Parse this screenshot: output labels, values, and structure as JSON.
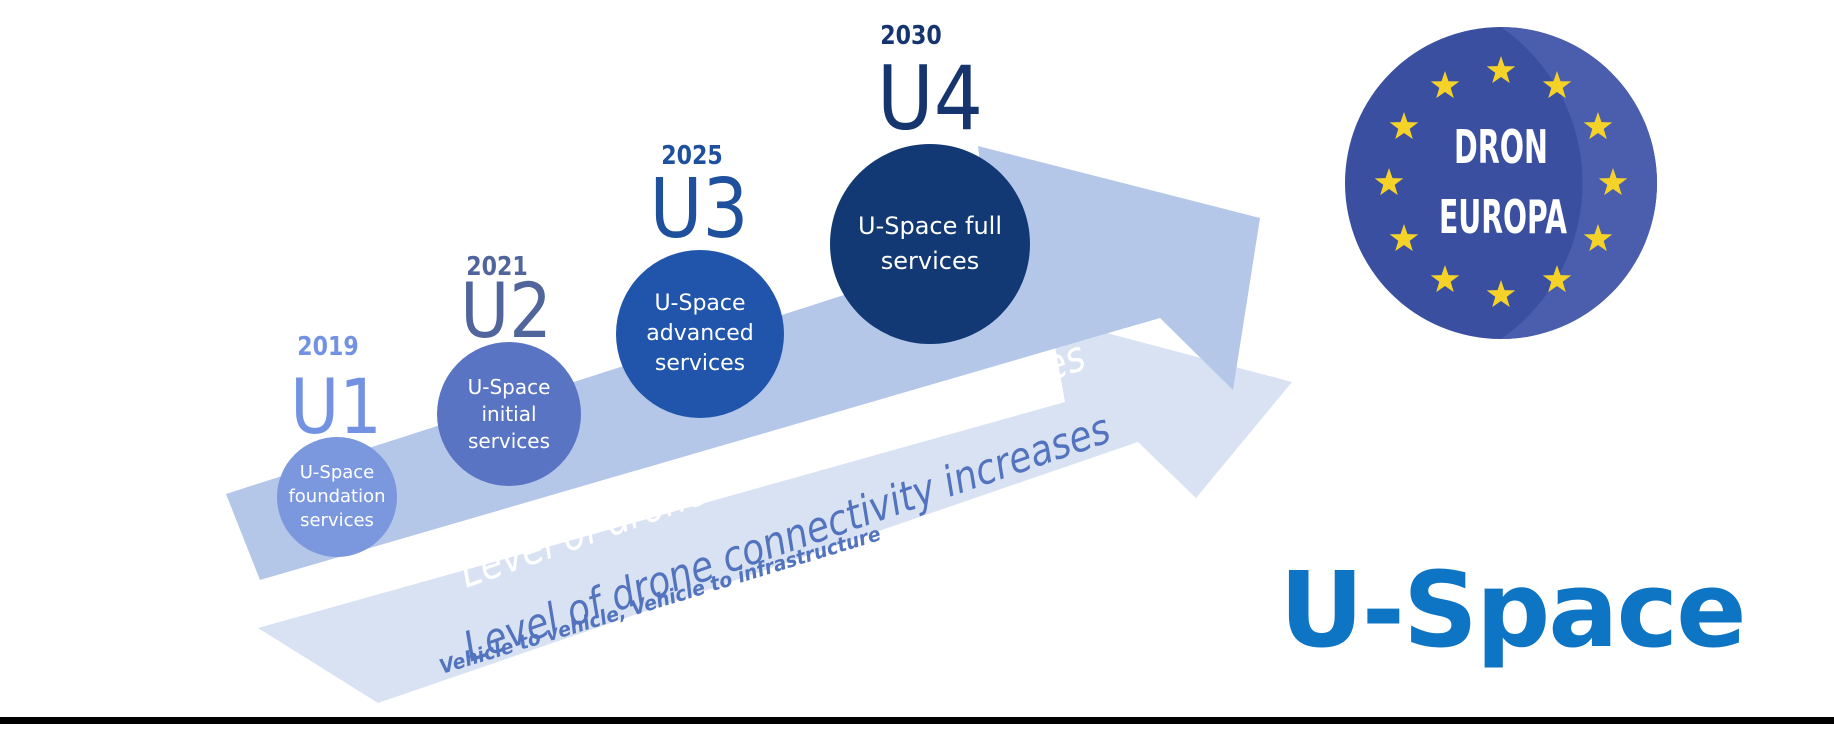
{
  "stages": [
    {
      "year": "2019",
      "code": "U1",
      "label": "U-Space foundation services",
      "circle_color": "#7B97DE",
      "label_color": "#7392E2"
    },
    {
      "year": "2021",
      "code": "U2",
      "label": "U-Space initial services",
      "circle_color": "#5A74C4",
      "label_color": "#50659C"
    },
    {
      "year": "2025",
      "code": "U3",
      "label": "U-Space advanced services",
      "circle_color": "#2155AC",
      "label_color": "#1E509E"
    },
    {
      "year": "2030",
      "code": "U4",
      "label": "U-Space full services",
      "circle_color": "#123973",
      "label_color": "#16356E"
    }
  ],
  "arrows": {
    "automation": {
      "label": "Level of drone automation increases",
      "fill": "#B4C7E9",
      "text_color": "#FFFFFF"
    },
    "connectivity": {
      "label": "Level of drone connectivity increases",
      "sub_label": "Vehicle to vehicle, Vehicle to infrastructure",
      "fill": "#D9E2F3",
      "text_color": "#5273BE"
    }
  },
  "logo": {
    "line1": "DRON",
    "line2": "EUROPA",
    "bg_color": "#3A4FA0",
    "highlight_color": "#4A5EAD",
    "star_color": "#F5D228",
    "star_count": 12,
    "text_color": "#FFFFFF"
  },
  "title": {
    "text": "U-Space",
    "color": "#0E74C4"
  },
  "footer_rule_color": "#000000"
}
